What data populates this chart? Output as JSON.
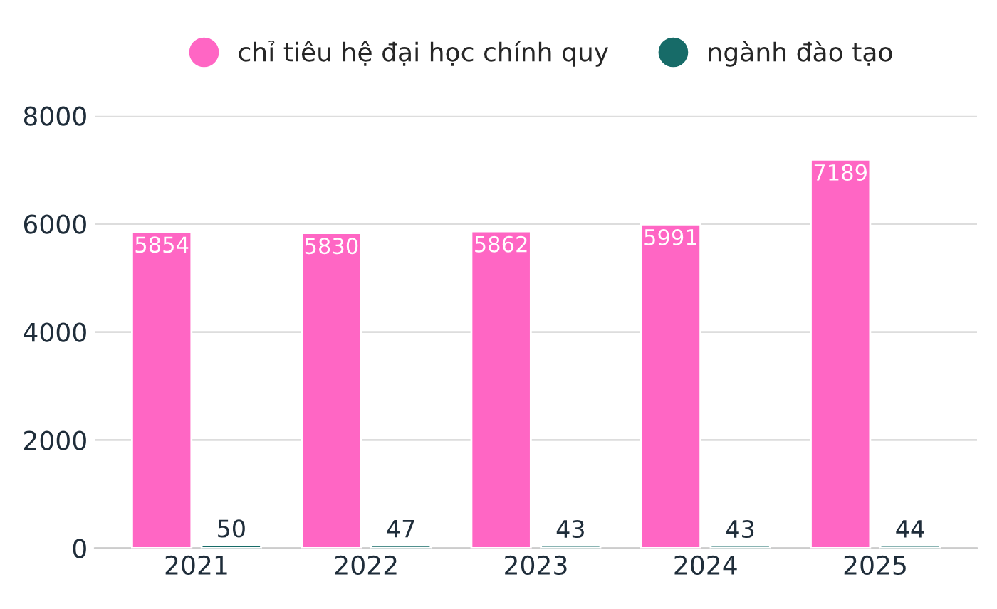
{
  "chart_data": {
    "type": "bar",
    "categories": [
      "2021",
      "2022",
      "2023",
      "2024",
      "2025"
    ],
    "series": [
      {
        "name": "chỉ tiêu hệ đại học chính quy",
        "color": "#ff66c4",
        "values": [
          5854,
          5830,
          5862,
          5991,
          7189
        ]
      },
      {
        "name": "ngành đào tạo",
        "color": "#176b68",
        "values": [
          50,
          47,
          43,
          43,
          44
        ]
      }
    ],
    "ylim": [
      0,
      8000
    ],
    "yticks": [
      0,
      2000,
      4000,
      6000,
      8000
    ],
    "grid": "y",
    "legend": "top",
    "data_labels": true
  }
}
